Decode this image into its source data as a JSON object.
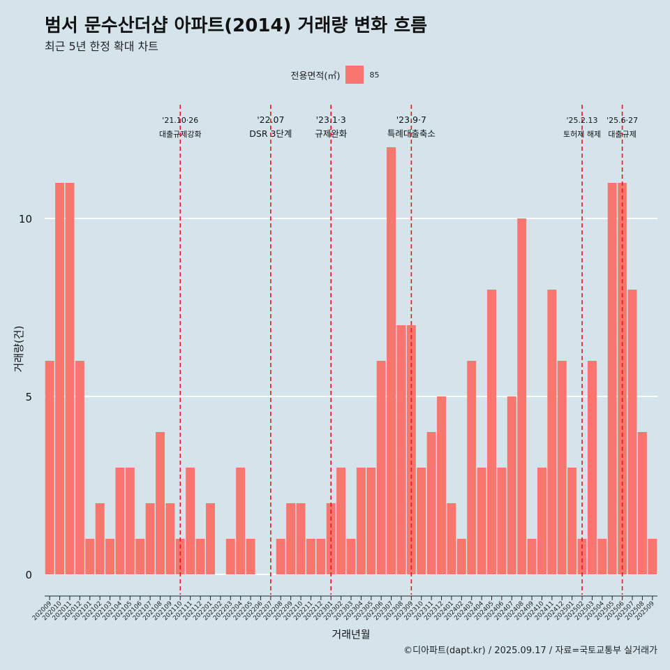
{
  "title": "범서 문수산더샵 아파트(2014) 거래량 변화 흐름",
  "subtitle": "최근 5년 한정 확대 차트",
  "caption": "©디아파트(dapt.kr) / 2025.09.17 / 자료=국토교통부 실거래가",
  "legend": {
    "title": "전용면적(㎡)",
    "items": [
      {
        "label": "85",
        "color": "#f8766d"
      }
    ]
  },
  "chart_data": {
    "type": "bar",
    "xlabel": "거래년월",
    "ylabel": "거래량(건)",
    "ylim": [
      0,
      13
    ],
    "yticks": [
      0,
      5,
      10
    ],
    "grid": true,
    "legend_position": "top",
    "bar_color": "#f8766d",
    "categories": [
      "202009",
      "202010",
      "202011",
      "202012",
      "202101",
      "202102",
      "202103",
      "202104",
      "202105",
      "202106",
      "202107",
      "202108",
      "202109",
      "202110",
      "202111",
      "202112",
      "202201",
      "202202",
      "202203",
      "202204",
      "202205",
      "202206",
      "202207",
      "202208",
      "202209",
      "202210",
      "202211",
      "202212",
      "202301",
      "202302",
      "202303",
      "202304",
      "202305",
      "202306",
      "202307",
      "202308",
      "202309",
      "202310",
      "202311",
      "202312",
      "202401",
      "202402",
      "202403",
      "202404",
      "202405",
      "202406",
      "202407",
      "202408",
      "202409",
      "202410",
      "202411",
      "202412",
      "202501",
      "202502",
      "202503",
      "202504",
      "202505",
      "202506",
      "202507",
      "202508",
      "202509"
    ],
    "series": [
      {
        "name": "85",
        "values": [
          6,
          11,
          11,
          6,
          1,
          2,
          1,
          3,
          3,
          1,
          2,
          4,
          2,
          1,
          3,
          1,
          2,
          0,
          1,
          3,
          1,
          0,
          0,
          1,
          2,
          2,
          1,
          1,
          2,
          3,
          1,
          3,
          3,
          6,
          12,
          7,
          7,
          3,
          4,
          5,
          2,
          1,
          6,
          3,
          8,
          3,
          5,
          10,
          1,
          3,
          8,
          6,
          3,
          1,
          6,
          1,
          11,
          11,
          8,
          4,
          1
        ]
      }
    ],
    "annotations": [
      {
        "x": "202110",
        "lines": [
          "'21.10·26",
          "대출규제강화"
        ]
      },
      {
        "x": "202207",
        "lines": [
          "'22.07",
          "DSR 3단계"
        ]
      },
      {
        "x": "202301",
        "lines": [
          "'23.1·3",
          "규제완화"
        ]
      },
      {
        "x": "202309",
        "lines": [
          "'23.9·7",
          "특례대출축소"
        ]
      },
      {
        "x": "202502",
        "lines": [
          "'25.2.13",
          "토허제 해제"
        ]
      },
      {
        "x": "202506",
        "lines": [
          "'25.6·27",
          "대출규제"
        ]
      }
    ]
  }
}
